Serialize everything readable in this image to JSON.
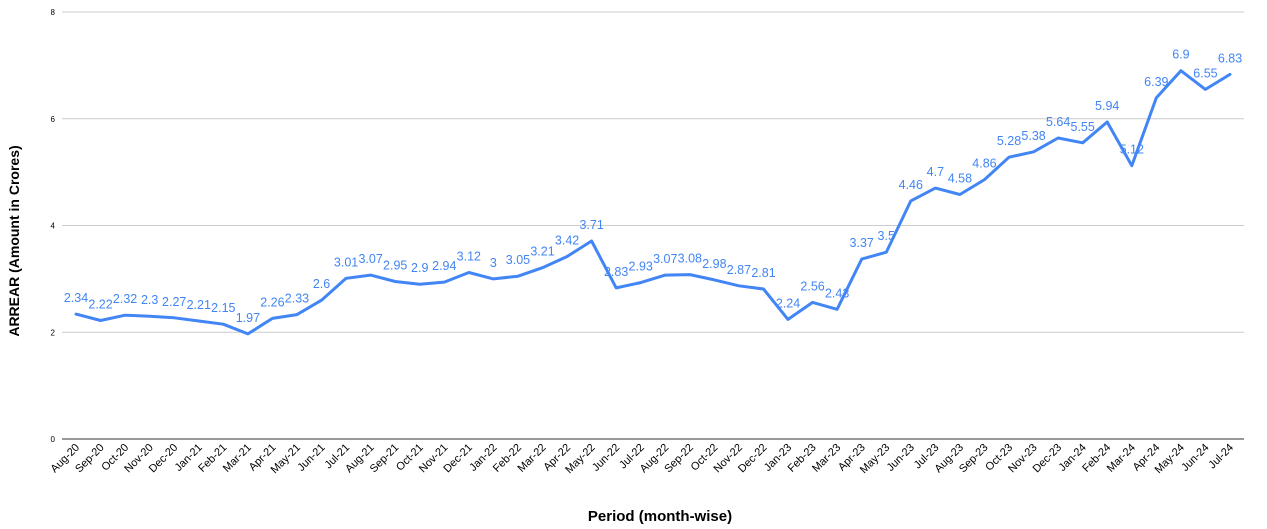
{
  "chart_data": {
    "type": "line",
    "xlabel": "Period (month-wise)",
    "ylabel": "ARREAR (Amount in Crores)",
    "ylim": [
      0,
      8
    ],
    "yticks": [
      "0",
      "2",
      "4",
      "6",
      "8"
    ],
    "grid": true,
    "legend": "none",
    "line_color": "#4285f4",
    "categories": [
      "Aug-20",
      "Sep-20",
      "Oct-20",
      "Nov-20",
      "Dec-20",
      "Jan-21",
      "Feb-21",
      "Mar-21",
      "Apr-21",
      "May-21",
      "Jun-21",
      "Jul-21",
      "Aug-21",
      "Sep-21",
      "Oct-21",
      "Nov-21",
      "Dec-21",
      "Jan-22",
      "Feb-22",
      "Mar-22",
      "Apr-22",
      "May-22",
      "Jun-22",
      "Jul-22",
      "Aug-22",
      "Sep-22",
      "Oct-22",
      "Nov-22",
      "Dec-22",
      "Jan-23",
      "Feb-23",
      "Mar-23",
      "Apr-23",
      "May-23",
      "Jun-23",
      "Jul-23",
      "Aug-23",
      "Sep-23",
      "Oct-23",
      "Nov-23",
      "Dec-23",
      "Jan-24",
      "Feb-24",
      "Mar-24",
      "Apr-24",
      "May-24",
      "Jun-24",
      "Jul-24"
    ],
    "series": [
      {
        "values": [
          2.34,
          2.22,
          2.32,
          2.3,
          2.27,
          2.21,
          2.15,
          1.97,
          2.26,
          2.33,
          2.6,
          3.01,
          3.07,
          2.95,
          2.9,
          2.94,
          3.12,
          3,
          3.05,
          3.21,
          3.42,
          3.71,
          2.83,
          2.93,
          3.07,
          3.08,
          2.98,
          2.87,
          2.81,
          2.24,
          2.56,
          2.43,
          3.37,
          3.5,
          4.46,
          4.7,
          4.58,
          4.86,
          5.28,
          5.38,
          5.64,
          5.55,
          5.94,
          5.12,
          6.39,
          6.9,
          6.55,
          6.83
        ],
        "labels": [
          "2.34",
          "2.22",
          "2.32",
          "2.3",
          "2.27",
          "2.21",
          "2.15",
          "1.97",
          "2.26",
          "2.33",
          "2.6",
          "3.01",
          "3.07",
          "2.95",
          "2.9",
          "2.94",
          "3.12",
          "3",
          "3.05",
          "3.21",
          "3.42",
          "3.71",
          "2.83",
          "2.93",
          "3.07",
          "3.08",
          "2.98",
          "2.87",
          "2.81",
          "2.24",
          "2.56",
          "2.43",
          "3.37",
          "3.5",
          "4.46",
          "4.7",
          "4.58",
          "4.86",
          "5.28",
          "5.38",
          "5.64",
          "5.55",
          "5.94",
          "5.12",
          "6.39",
          "6.9",
          "6.55",
          "6.83"
        ]
      }
    ]
  }
}
